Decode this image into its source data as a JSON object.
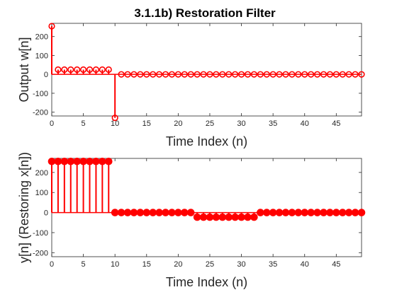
{
  "chart_data": [
    {
      "type": "stem",
      "title": "3.1.1b) Restoration Filter",
      "xlabel": "Time Index (n)",
      "ylabel": "Output w[n]",
      "xlim": [
        0,
        49
      ],
      "ylim": [
        -220,
        270
      ],
      "xticks": [
        "0",
        "5",
        "10",
        "15",
        "20",
        "25",
        "30",
        "35",
        "40",
        "45"
      ],
      "yticks": [
        "-200",
        "-100",
        "0",
        "100",
        "200"
      ],
      "marker": "hollow-circle",
      "color": "#ff0000",
      "grid": false,
      "n": [
        0,
        1,
        2,
        3,
        4,
        5,
        6,
        7,
        8,
        9,
        10,
        11,
        12,
        13,
        14,
        15,
        16,
        17,
        18,
        19,
        20,
        21,
        22,
        23,
        24,
        25,
        26,
        27,
        28,
        29,
        30,
        31,
        32,
        33,
        34,
        35,
        36,
        37,
        38,
        39,
        40,
        41,
        42,
        43,
        44,
        45,
        46,
        47,
        48,
        49
      ],
      "values": [
        255,
        25,
        25,
        25,
        25,
        25,
        25,
        25,
        25,
        25,
        -230,
        0,
        0,
        0,
        0,
        0,
        0,
        0,
        0,
        0,
        0,
        0,
        0,
        0,
        0,
        0,
        0,
        0,
        0,
        0,
        0,
        0,
        0,
        0,
        0,
        0,
        0,
        0,
        0,
        0,
        0,
        0,
        0,
        0,
        0,
        0,
        0,
        0,
        0,
        0
      ]
    },
    {
      "type": "stem",
      "title": "",
      "xlabel": "Time Index (n)",
      "ylabel": "y[n] (Restoring x[n])",
      "xlim": [
        0,
        49
      ],
      "ylim": [
        -220,
        270
      ],
      "xticks": [
        "0",
        "5",
        "10",
        "15",
        "20",
        "25",
        "30",
        "35",
        "40",
        "45"
      ],
      "yticks": [
        "-200",
        "-100",
        "0",
        "100",
        "200"
      ],
      "marker": "filled-circle",
      "color": "#ff0000",
      "grid": false,
      "n": [
        0,
        1,
        2,
        3,
        4,
        5,
        6,
        7,
        8,
        9,
        10,
        11,
        12,
        13,
        14,
        15,
        16,
        17,
        18,
        19,
        20,
        21,
        22,
        23,
        24,
        25,
        26,
        27,
        28,
        29,
        30,
        31,
        32,
        33,
        34,
        35,
        36,
        37,
        38,
        39,
        40,
        41,
        42,
        43,
        44,
        45,
        46,
        47,
        48,
        49
      ],
      "values": [
        255,
        255,
        255,
        255,
        255,
        255,
        255,
        255,
        255,
        255,
        0,
        0,
        0,
        0,
        0,
        0,
        0,
        0,
        0,
        0,
        0,
        0,
        0,
        -23,
        -23,
        -23,
        -23,
        -23,
        -23,
        -23,
        -23,
        -23,
        -23,
        0,
        0,
        0,
        0,
        0,
        0,
        0,
        0,
        0,
        0,
        0,
        0,
        0,
        0,
        0,
        0,
        0
      ]
    }
  ]
}
